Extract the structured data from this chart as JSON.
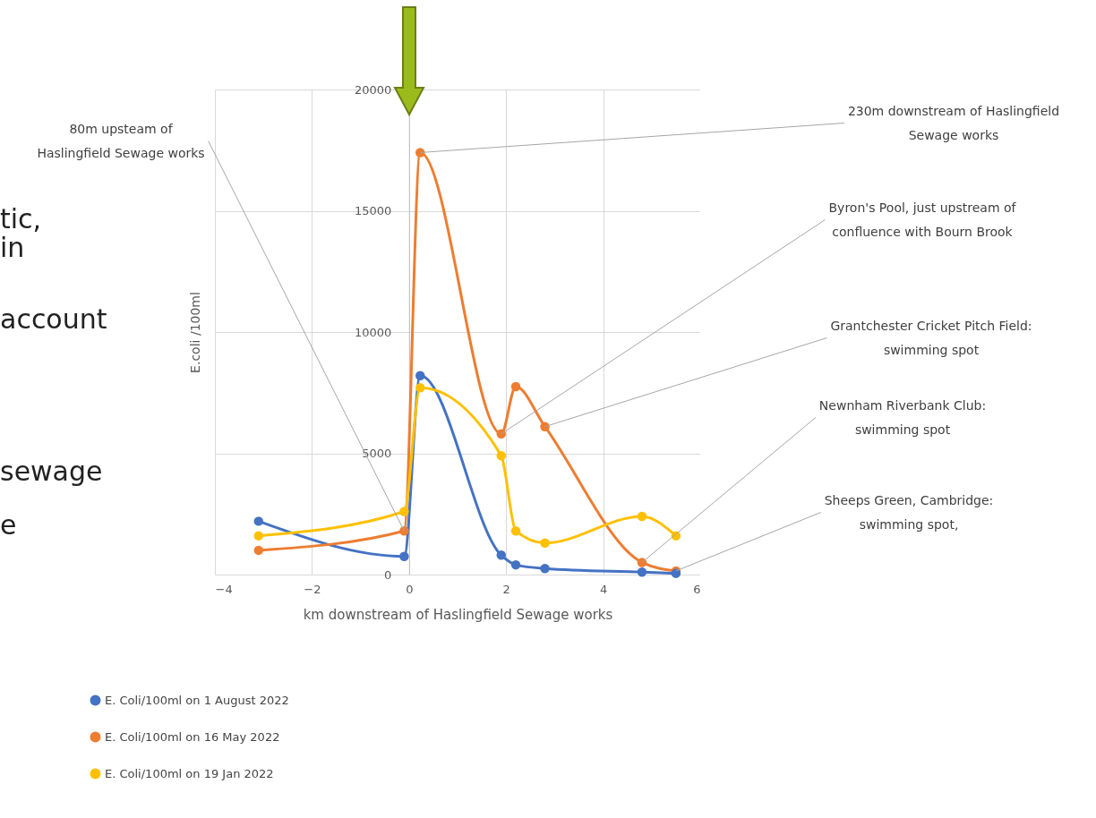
{
  "chart_data": {
    "type": "line",
    "xlabel": "km downstream of Haslingfield Sewage works",
    "ylabel": "E.coli /100ml",
    "xlim": [
      -4,
      6
    ],
    "xticks": [
      -4,
      -2,
      0,
      2,
      4,
      6
    ],
    "ylim": [
      0,
      20000
    ],
    "yticks": [
      0,
      5000,
      10000,
      15000,
      20000
    ],
    "grid": true,
    "legend": "bottom left",
    "marker": "circle",
    "line_style": "solid",
    "x": [
      -3.1,
      -0.1,
      0.23,
      1.9,
      2.2,
      2.8,
      4.8,
      5.5
    ],
    "series": [
      {
        "name": "E. Coli/100ml on 1 August 2022",
        "color": "#4472c4",
        "values": [
          2200,
          750,
          8200,
          800,
          400,
          250,
          100,
          50
        ]
      },
      {
        "name": "E. Coli/100ml on 16 May 2022",
        "color": "#ed7d31",
        "values": [
          1000,
          1800,
          17400,
          5800,
          7750,
          6100,
          500,
          150
        ]
      },
      {
        "name": "E. Coli/100ml on 19 Jan 2022",
        "color": "#ffc000",
        "values": [
          1600,
          2600,
          7700,
          4900,
          1800,
          1300,
          2400,
          1600
        ]
      }
    ],
    "annotations": [
      {
        "text": "80m upsteam of\nHaslingfield Sewage works",
        "x": -0.1,
        "y": 1800
      },
      {
        "text": "230m downstream of Haslingfield\nSewage works",
        "x": 0.23,
        "y": 17400
      },
      {
        "text": "Byron's Pool, just upstream of\nconfluence with Bourn Brook",
        "x": 1.9,
        "y": 5800
      },
      {
        "text": "Grantchester Cricket Pitch Field:\nswimming spot",
        "x": 2.8,
        "y": 6100
      },
      {
        "text": "Newnham Riverbank Club:\nswimming spot",
        "x": 4.8,
        "y": 500
      },
      {
        "text": "Sheeps Green, Cambridge:\nswimming spot,",
        "x": 5.5,
        "y": 150
      },
      "tic,",
      "in",
      "account",
      "sewage",
      "e"
    ]
  }
}
